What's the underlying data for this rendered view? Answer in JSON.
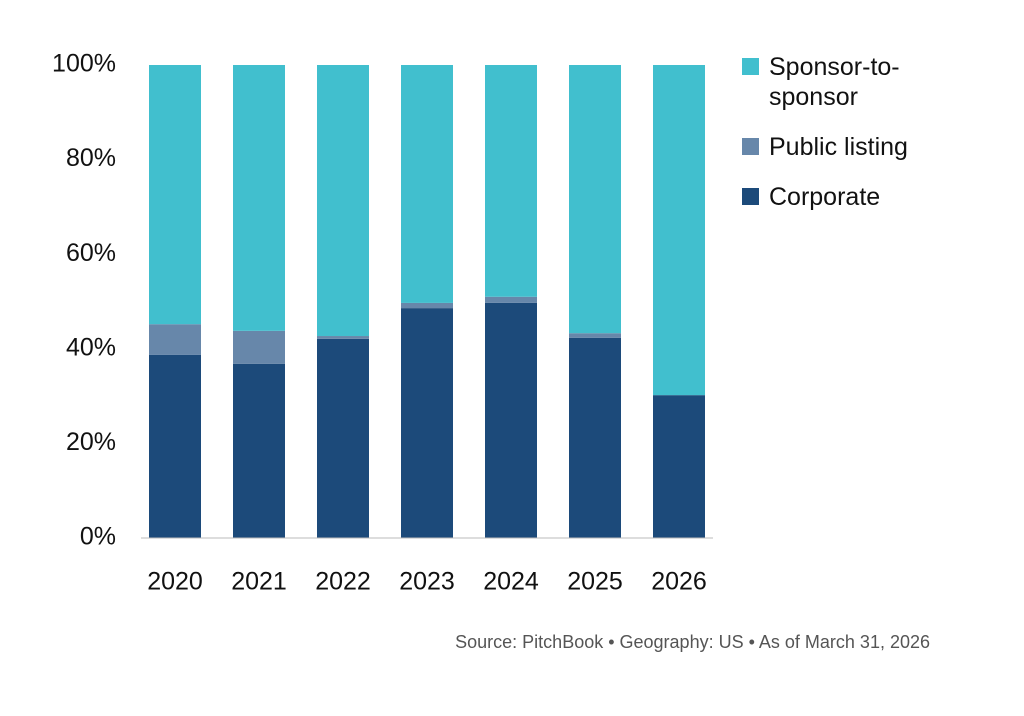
{
  "chart_data": {
    "type": "stacked-bar",
    "categories": [
      "2020",
      "2021",
      "2022",
      "2023",
      "2024",
      "2025",
      "2026"
    ],
    "series": [
      {
        "name": "Corporate",
        "color": "#1c4a7a",
        "values": [
          38.7,
          36.8,
          42.1,
          48.6,
          49.7,
          42.3,
          30.2
        ]
      },
      {
        "name": "Public listing",
        "color": "#6787aa",
        "values": [
          6.5,
          7.0,
          0.6,
          1.1,
          1.3,
          1.0,
          0
        ]
      },
      {
        "name": "Sponsor-to-sponsor",
        "color": "#41bfce",
        "values": [
          54.8,
          56.2,
          57.3,
          50.3,
          49.0,
          56.7,
          69.8
        ]
      }
    ],
    "ylim": [
      0,
      100
    ],
    "yticks": [
      {
        "value": 0,
        "label": "0%"
      },
      {
        "value": 20,
        "label": "20%"
      },
      {
        "value": 40,
        "label": "40%"
      },
      {
        "value": 60,
        "label": "60%"
      },
      {
        "value": 80,
        "label": "80%"
      },
      {
        "value": 100,
        "label": "100%"
      }
    ],
    "grid": false,
    "legend": "right",
    "source": "Source: PitchBook  •  Geography: US  •  As of March 31, 2026"
  }
}
